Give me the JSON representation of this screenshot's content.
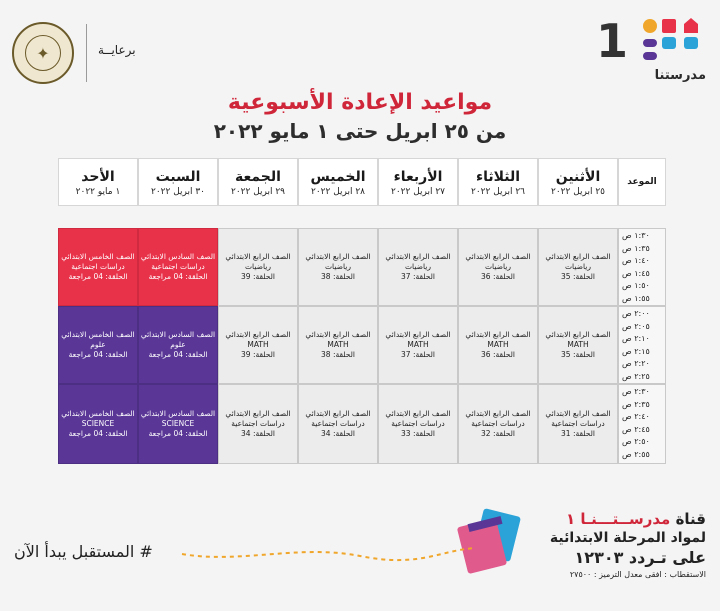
{
  "header": {
    "brand_number": "1",
    "brand_name": "مدرستنا",
    "sponsor": "برعايــة",
    "title": "مواعيد الإعادة الأسبوعية",
    "subtitle": "من ٢٥ ابريل حتى ١ مايو ٢٠٢٢",
    "colors": {
      "accent": "#d0263a",
      "purple": "#5a3796",
      "red": "#e8324a"
    }
  },
  "table": {
    "slot_header": "الموعد",
    "days": [
      {
        "name": "الأثنين",
        "date": "٢٥ ابريل ٢٠٢٢"
      },
      {
        "name": "الثلاثاء",
        "date": "٢٦ ابريل ٢٠٢٢"
      },
      {
        "name": "الأربعاء",
        "date": "٢٧ ابريل ٢٠٢٢"
      },
      {
        "name": "الخميس",
        "date": "٢٨ ابريل ٢٠٢٢"
      },
      {
        "name": "الجمعة",
        "date": "٢٩ ابريل ٢٠٢٢"
      },
      {
        "name": "السبت",
        "date": "٣٠ ابريل ٢٠٢٢"
      },
      {
        "name": "الأحد",
        "date": "١ مايو ٢٠٢٢"
      }
    ],
    "times": [
      "١:٣٠ ص",
      "١:٣٥ ص",
      "١:٤٠ ص",
      "١:٤٥ ص",
      "١:٥٠ ص",
      "١:٥٥ ص",
      "٢:٠٠ ص",
      "٢:٠٥ ص",
      "٢:١٠ ص",
      "٢:١٥ ص",
      "٢:٢٠ ص",
      "٢:٢٥ ص",
      "٢:٣٠ ص",
      "٢:٣٥ ص",
      "٢:٤٠ ص",
      "٢:٤٥ ص",
      "٢:٥٠ ص",
      "٢:٥٥ ص"
    ],
    "rows": [
      [
        {
          "l1": "الصف الرابع الابتدائي",
          "l2": "رياضيات",
          "l3": "الحلقة: 35",
          "style": "gray"
        },
        {
          "l1": "الصف الرابع الابتدائي",
          "l2": "رياضيات",
          "l3": "الحلقة: 36",
          "style": "gray"
        },
        {
          "l1": "الصف الرابع الابتدائي",
          "l2": "رياضيات",
          "l3": "الحلقة: 37",
          "style": "gray"
        },
        {
          "l1": "الصف الرابع الابتدائي",
          "l2": "رياضيات",
          "l3": "الحلقة: 38",
          "style": "gray"
        },
        {
          "l1": "الصف الرابع الابتدائي",
          "l2": "رياضيات",
          "l3": "الحلقة: 39",
          "style": "gray"
        },
        {
          "l1": "الصف السادس الابتدائي",
          "l2": "دراسات اجتماعية",
          "l3": "الحلقة: 04 مراجعة",
          "style": "red"
        },
        {
          "l1": "الصف الخامس الابتدائي",
          "l2": "دراسات اجتماعية",
          "l3": "الحلقة: 04 مراجعة",
          "style": "red"
        }
      ],
      [
        {
          "l1": "الصف الرابع الابتدائي",
          "l2": "MATH",
          "l3": "الحلقة: 35",
          "style": "gray"
        },
        {
          "l1": "الصف الرابع الابتدائي",
          "l2": "MATH",
          "l3": "الحلقة: 36",
          "style": "gray"
        },
        {
          "l1": "الصف الرابع الابتدائي",
          "l2": "MATH",
          "l3": "الحلقة: 37",
          "style": "gray"
        },
        {
          "l1": "الصف الرابع الابتدائي",
          "l2": "MATH",
          "l3": "الحلقة: 38",
          "style": "gray"
        },
        {
          "l1": "الصف الرابع الابتدائي",
          "l2": "MATH",
          "l3": "الحلقة: 39",
          "style": "gray"
        },
        {
          "l1": "الصف السادس الابتدائي",
          "l2": "علوم",
          "l3": "الحلقة: 04 مراجعة",
          "style": "purple"
        },
        {
          "l1": "الصف الخامس الابتدائي",
          "l2": "علوم",
          "l3": "الحلقة: 04 مراجعة",
          "style": "purple"
        }
      ],
      [
        {
          "l1": "الصف الرابع الابتدائي",
          "l2": "دراسات اجتماعية",
          "l3": "الحلقة: 31",
          "style": "gray"
        },
        {
          "l1": "الصف الرابع الابتدائي",
          "l2": "دراسات اجتماعية",
          "l3": "الحلقة: 32",
          "style": "gray"
        },
        {
          "l1": "الصف الرابع الابتدائي",
          "l2": "دراسات اجتماعية",
          "l3": "الحلقة: 33",
          "style": "gray"
        },
        {
          "l1": "الصف الرابع الابتدائي",
          "l2": "دراسات اجتماعية",
          "l3": "الحلقة: 34",
          "style": "gray"
        },
        {
          "l1": "الصف الرابع الابتدائي",
          "l2": "دراسات اجتماعية",
          "l3": "الحلقة: 34",
          "style": "gray"
        },
        {
          "l1": "الصف السادس الابتدائي",
          "l2": "SCIENCE",
          "l3": "الحلقة: 04 مراجعة",
          "style": "purple"
        },
        {
          "l1": "الصف الخامس الابتدائي",
          "l2": "SCIENCE",
          "l3": "الحلقة: 04 مراجعة",
          "style": "purple"
        }
      ]
    ]
  },
  "footer": {
    "slogan": "# المستقبل يبدأ الآن",
    "channel_prefix": "قناة",
    "channel_name": "مدرســتـــنـا ١",
    "line2": "لمواد المرحلة الابتدائية",
    "line3": "على تـردد ١٢٣٠٣",
    "line4": "الاستقطاب : افقى معدل الترميز : ٢٧٥٠٠"
  }
}
